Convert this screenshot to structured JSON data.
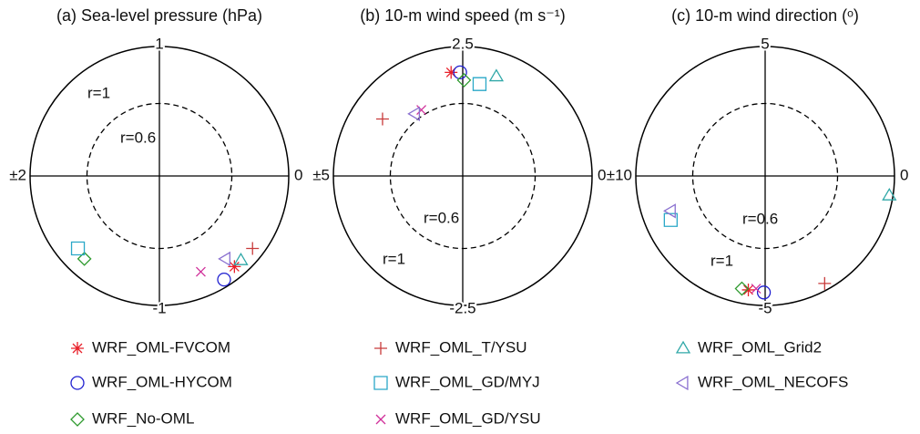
{
  "chart_data": [
    {
      "type": "scatter",
      "title": "(a) Sea-level pressure (hPa)",
      "axis_labels": {
        "top": "1",
        "bottom": "-1",
        "left": "±2",
        "right": "0"
      },
      "circle_labels": [
        "r=1",
        "r=0.6"
      ],
      "xlim": [
        -1,
        1
      ],
      "ylim": [
        -1,
        1
      ],
      "x": [
        0.58,
        0.5,
        -0.58,
        0.72,
        -0.63,
        0.32,
        0.63,
        0.51
      ],
      "y": [
        -0.7,
        -0.8,
        -0.64,
        -0.56,
        -0.56,
        -0.74,
        -0.65,
        -0.64
      ]
    },
    {
      "type": "scatter",
      "title": "(b) 10-m wind speed (m s⁻¹)",
      "axis_labels": {
        "top": "2.5",
        "bottom": "-2.5",
        "left": "±5",
        "right": "0"
      },
      "circle_labels": [
        "r=1",
        "r=0.6"
      ],
      "xlim": [
        -1,
        1
      ],
      "ylim": [
        -1,
        1
      ],
      "x": [
        -0.09,
        -0.02,
        0.01,
        -0.62,
        0.13,
        -0.32,
        0.26,
        -0.37
      ],
      "y": [
        0.8,
        0.8,
        0.74,
        0.44,
        0.71,
        0.51,
        0.77,
        0.48
      ]
    },
    {
      "type": "scatter",
      "title": "(c) 10-m wind direction (ᵒ)",
      "axis_labels": {
        "top": "5",
        "bottom": "-5",
        "left": "±10",
        "right": "0"
      },
      "circle_labels": [
        "r=1",
        "r=0.6"
      ],
      "xlim": [
        -1,
        1
      ],
      "ylim": [
        -1,
        1
      ],
      "x": [
        -0.13,
        -0.01,
        -0.18,
        0.46,
        -0.73,
        -0.07,
        0.96,
        -0.73
      ],
      "y": [
        -0.88,
        -0.9,
        -0.87,
        -0.83,
        -0.34,
        -0.87,
        -0.15,
        -0.27
      ]
    }
  ],
  "legend": [
    {
      "name": "WRF_OML-FVCOM",
      "color": "#e8202a",
      "marker": "star"
    },
    {
      "name": "WRF_OML-HYCOM",
      "color": "#2020d0",
      "marker": "circle"
    },
    {
      "name": "WRF_No-OML",
      "color": "#2e9a2e",
      "marker": "diamond"
    },
    {
      "name": "WRF_OML_T/YSU",
      "color": "#c83a3a",
      "marker": "plus"
    },
    {
      "name": "WRF_OML_GD/MYJ",
      "color": "#2aa8c8",
      "marker": "square"
    },
    {
      "name": "WRF_OML_GD/YSU",
      "color": "#d0309a",
      "marker": "cross"
    },
    {
      "name": "WRF_OML_Grid2",
      "color": "#30a8a8",
      "marker": "triangle"
    },
    {
      "name": "WRF_OML_NECOFS",
      "color": "#8a70d0",
      "marker": "left-triangle"
    }
  ]
}
